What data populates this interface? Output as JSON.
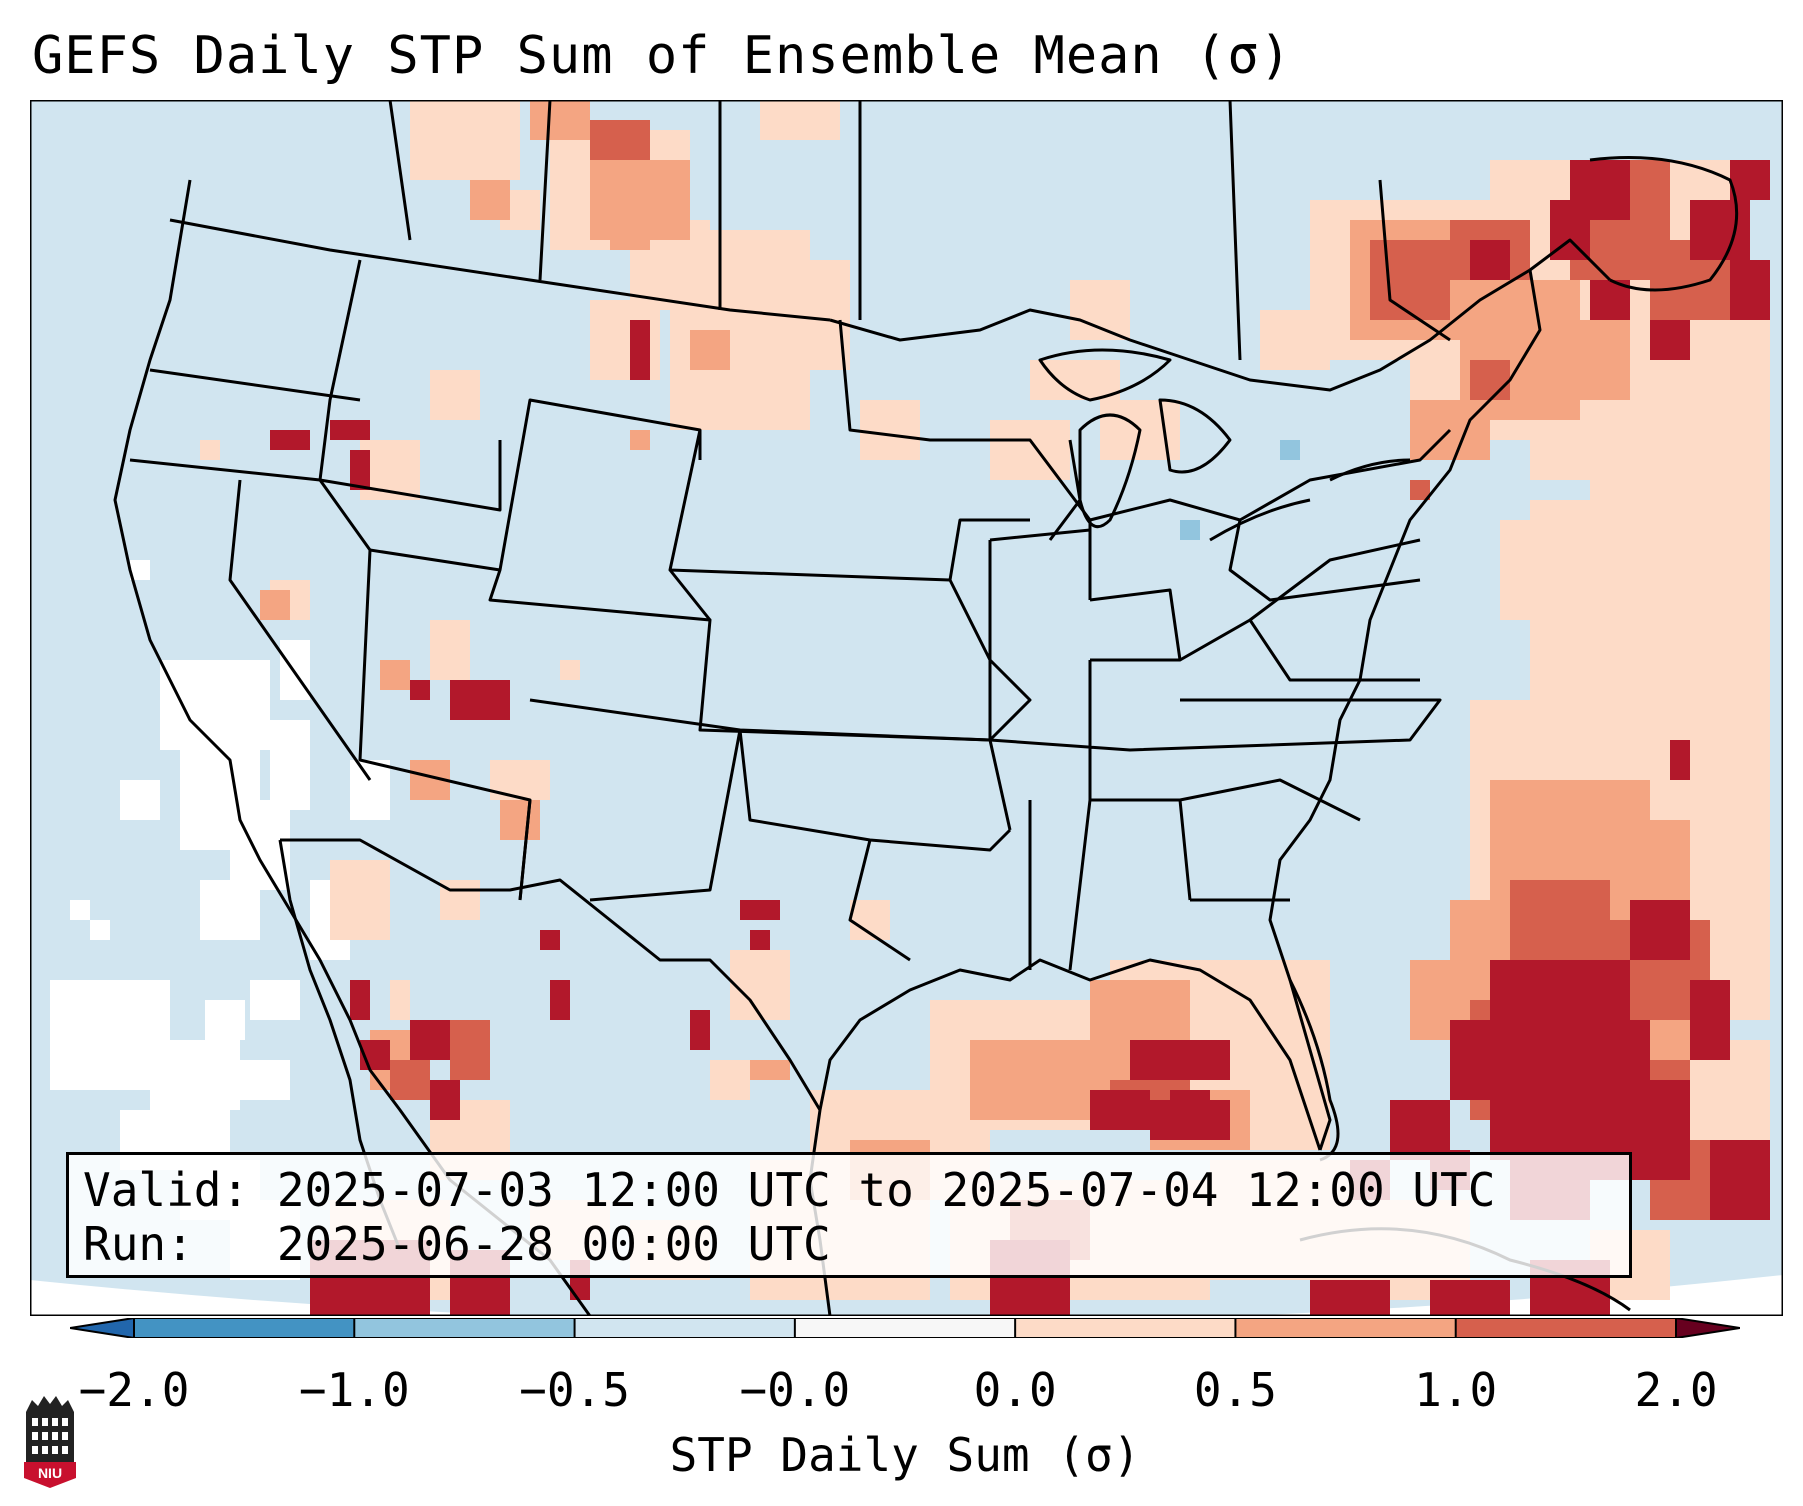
{
  "title": "GEFS Daily STP Sum of Ensemble Mean (σ)",
  "info_box": {
    "valid_line": "Valid: 2025-07-03 12:00 UTC to 2025-07-04 12:00 UTC",
    "run_line": "Run:   2025-06-28 00:00 UTC"
  },
  "colorbar": {
    "label": "STP Daily Sum (σ)",
    "ticks": [
      "−2.0",
      "−1.0",
      "−0.5",
      "−0.0",
      "0.0",
      "0.5",
      "1.0",
      "2.0"
    ],
    "colors": [
      "#4393c3",
      "#92c5de",
      "#d1e5f0",
      "#f7f7f7",
      "#fddbc7",
      "#f4a582",
      "#d6604d",
      "#b2182b"
    ]
  },
  "logo": {
    "text": "NIU"
  },
  "map": {
    "projection": "Lambert Conformal (CONUS)",
    "background_color": "#d1e5f0",
    "features": [
      "us-state-borders",
      "canada-province-borders",
      "mexico-border",
      "coastlines",
      "great-lakes"
    ]
  }
}
